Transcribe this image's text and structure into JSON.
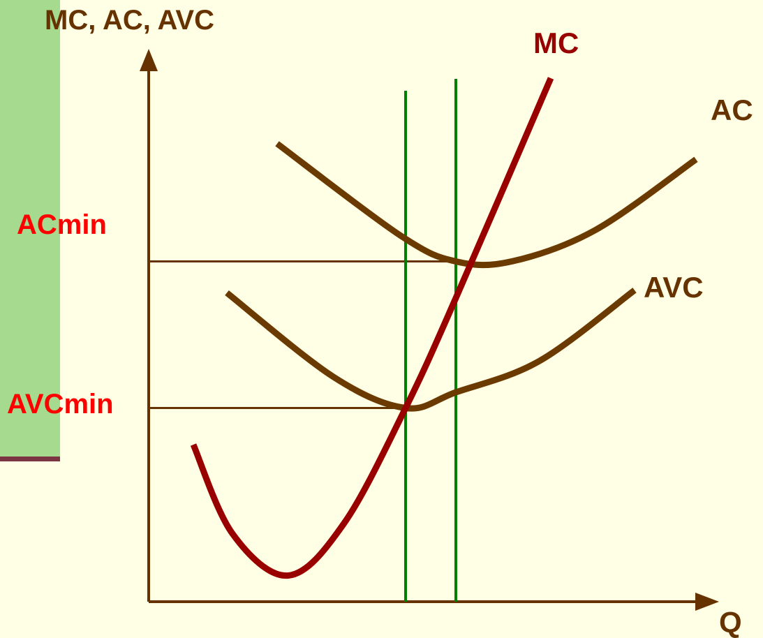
{
  "colors": {
    "background": "#FFFFE6",
    "sidebar_green": "#A6DA8E",
    "sidebar_rule": "#7A3442",
    "axis": "#663300",
    "cost_curve": "#6B3A00",
    "mc_curve": "#990000",
    "guide_line": "#008000",
    "min_label": "#FF0000"
  },
  "chart_data": {
    "type": "line",
    "title": "",
    "ylabel": "MC, AC, AVC",
    "xlabel": "Q",
    "y_reference_labels": {
      "ac_min": "ACmin",
      "avc_min": "AVCmin"
    },
    "series": [
      {
        "name": "MC",
        "color": "#990000",
        "points": [
          [
            0.8,
            6.0
          ],
          [
            1.5,
            2.6
          ],
          [
            2.5,
            1.0
          ],
          [
            3.5,
            3.0
          ],
          [
            4.6,
            7.4
          ],
          [
            5.5,
            11.6
          ],
          [
            7.2,
            20.0
          ]
        ]
      },
      {
        "name": "AC",
        "color": "#6B3A00",
        "points": [
          [
            2.3,
            17.5
          ],
          [
            4.5,
            14.0
          ],
          [
            5.5,
            13.0
          ],
          [
            6.5,
            13.0
          ],
          [
            8.0,
            14.2
          ],
          [
            9.8,
            16.9
          ]
        ]
      },
      {
        "name": "AVC",
        "color": "#6B3A00",
        "points": [
          [
            1.4,
            11.8
          ],
          [
            3.3,
            8.6
          ],
          [
            4.6,
            7.4
          ],
          [
            5.5,
            8.0
          ],
          [
            7.0,
            9.2
          ],
          [
            8.7,
            11.9
          ]
        ]
      }
    ],
    "x_guides": [
      4.6,
      5.5
    ],
    "y_guides": [
      13.0,
      7.4
    ],
    "xlim": [
      -1,
      11
    ],
    "ylim": [
      0,
      22
    ],
    "grid": false,
    "legend": "none"
  }
}
